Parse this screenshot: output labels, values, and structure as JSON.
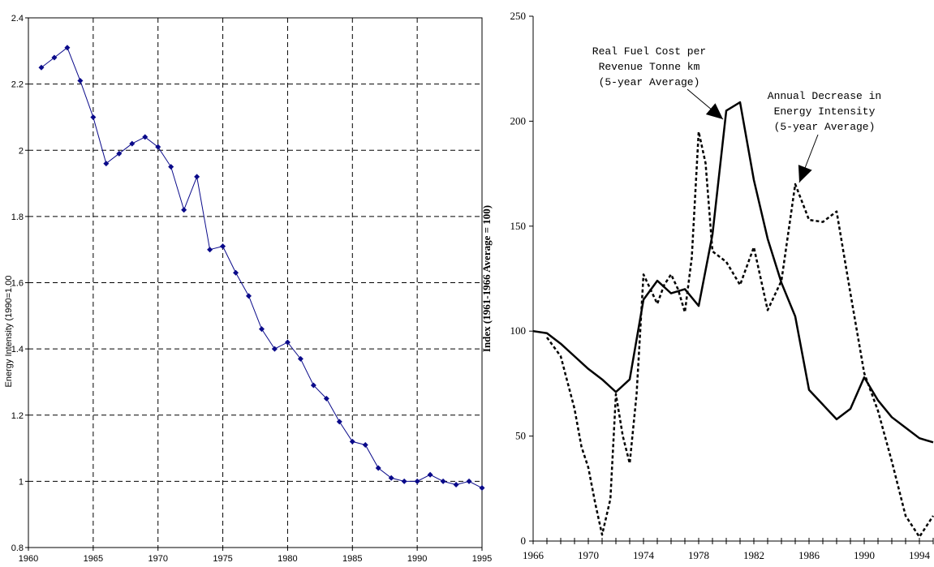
{
  "chart_data": [
    {
      "type": "line",
      "title": "",
      "xlabel": "",
      "ylabel": "Energy Intensity (1990=1.00",
      "xlim": [
        1960,
        1995
      ],
      "ylim": [
        0.8,
        2.4
      ],
      "grid": true,
      "x_ticks": [
        "1960",
        "1965",
        "1970",
        "1975",
        "1980",
        "1985",
        "1990",
        "1995"
      ],
      "y_ticks": [
        "0.8",
        "1",
        "1.2",
        "1.4",
        "1.6",
        "1.8",
        "2",
        "2.2",
        "2.4"
      ],
      "series": [
        {
          "color": "#0a0a8a",
          "marker": "diamond",
          "x": [
            1961,
            1962,
            1963,
            1964,
            1965,
            1966,
            1967,
            1968,
            1969,
            1970,
            1971,
            1972,
            1973,
            1974,
            1975,
            1976,
            1977,
            1978,
            1979,
            1980,
            1981,
            1982,
            1983,
            1984,
            1985,
            1986,
            1987,
            1988,
            1989,
            1990,
            1991,
            1992,
            1993,
            1994,
            1995
          ],
          "y": [
            2.25,
            2.28,
            2.31,
            2.21,
            2.1,
            1.96,
            1.99,
            2.02,
            2.04,
            2.01,
            1.95,
            1.82,
            1.92,
            1.7,
            1.71,
            1.63,
            1.56,
            1.46,
            1.4,
            1.42,
            1.37,
            1.29,
            1.25,
            1.18,
            1.12,
            1.11,
            1.04,
            1.01,
            1.0,
            1.0,
            1.02,
            1.0,
            0.99,
            1.0,
            0.98
          ]
        }
      ]
    },
    {
      "type": "line",
      "title": "",
      "xlabel": "",
      "ylabel": "Index (1961-1966 Average = 100)",
      "xlim": [
        1966,
        1995
      ],
      "ylim": [
        0,
        250
      ],
      "grid": false,
      "x_ticks": [
        "1966",
        "1970",
        "1974",
        "1978",
        "1982",
        "1986",
        "1990",
        "1994"
      ],
      "y_ticks": [
        "0",
        "50",
        "100",
        "150",
        "200",
        "250"
      ],
      "series": [
        {
          "style": "solid",
          "x": [
            1966,
            1967,
            1968,
            1969,
            1970,
            1971,
            1972,
            1973,
            1974,
            1975,
            1976,
            1977,
            1978,
            1979,
            1980,
            1981,
            1982,
            1983,
            1984,
            1985,
            1986,
            1987,
            1988,
            1989,
            1990,
            1991,
            1992,
            1993,
            1994,
            1995
          ],
          "y": [
            100,
            99,
            94,
            88,
            82,
            77,
            71,
            77,
            115,
            124,
            118,
            120,
            112,
            146,
            205,
            209,
            172,
            144,
            123,
            107,
            72,
            65,
            58,
            63,
            78,
            67,
            59,
            54,
            49,
            47
          ]
        },
        {
          "style": "dashed",
          "x": [
            1967,
            1968,
            1969,
            1969.5,
            1970,
            1970.5,
            1971,
            1971.6,
            1972,
            1972.5,
            1973,
            1973.5,
            1974,
            1974.5,
            1975,
            1975.5,
            1976,
            1976.5,
            1977,
            1977.5,
            1978,
            1978.5,
            1979,
            1980,
            1981,
            1982,
            1983,
            1984,
            1985,
            1986,
            1987,
            1988,
            1989,
            1990,
            1991,
            1992,
            1993,
            1994,
            1995
          ],
          "y": [
            97,
            88,
            63,
            45,
            35,
            18,
            3,
            20,
            70,
            50,
            37,
            70,
            127,
            120,
            113,
            122,
            127,
            120,
            109,
            135,
            195,
            180,
            138,
            133,
            122,
            140,
            110,
            124,
            170,
            153,
            152,
            157,
            118,
            80,
            62,
            38,
            12,
            2,
            12
          ]
        }
      ],
      "annotations": [
        {
          "lines": [
            "Real Fuel Cost per",
            "Revenue Tonne km",
            "(5-year Average)"
          ]
        },
        {
          "lines": [
            "Annual Decrease in",
            "Energy Intensity",
            "(5-year Average)"
          ]
        }
      ]
    }
  ]
}
